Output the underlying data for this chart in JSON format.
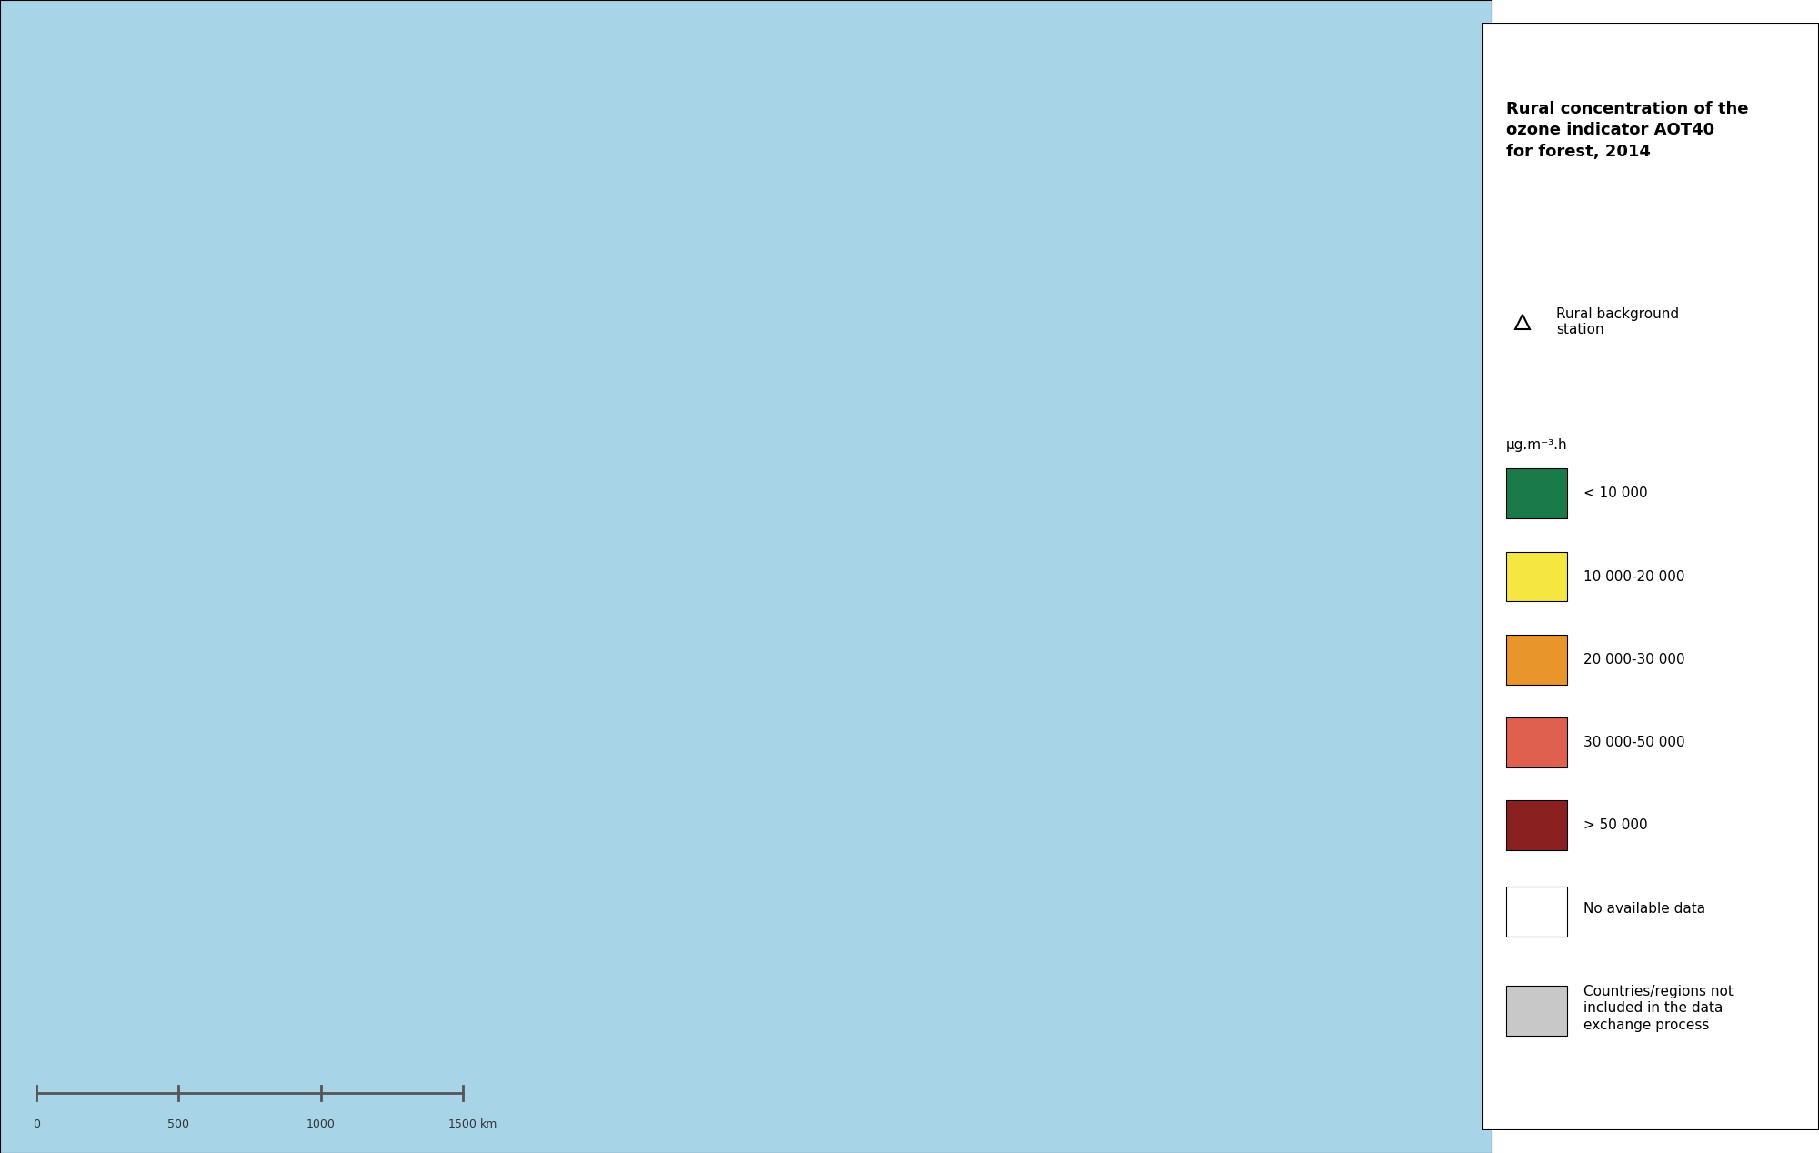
{
  "title": "Rural concentration of the\nozone indicator AOT40\nfor forest, 2014",
  "legend_title_unit": "μg.m⁻³.h",
  "colors": {
    "dark_green": "#1a7a4a",
    "yellow": "#f5e642",
    "orange": "#e8952a",
    "salmon": "#e06050",
    "dark_red": "#8b2020",
    "white": "#ffffff",
    "light_gray": "#c8c8c8",
    "ocean": "#a8d4e8",
    "grid_line": "#b0d0e0",
    "border": "#888888",
    "background": "#ffffff"
  },
  "legend_items": [
    {
      "color": "#1a7a4a",
      "label": "< 10 000"
    },
    {
      "color": "#f5e642",
      "label": "10 000-20 000"
    },
    {
      "color": "#e8952a",
      "label": "20 000-30 000"
    },
    {
      "color": "#e06050",
      "label": "30 000-50 000"
    },
    {
      "color": "#8b2020",
      "label": "> 50 000"
    }
  ],
  "scale_bar": {
    "ticks": [
      0,
      500,
      1000,
      1500
    ],
    "label": "km"
  },
  "figsize": [
    20.0,
    12.68
  ],
  "dpi": 100
}
